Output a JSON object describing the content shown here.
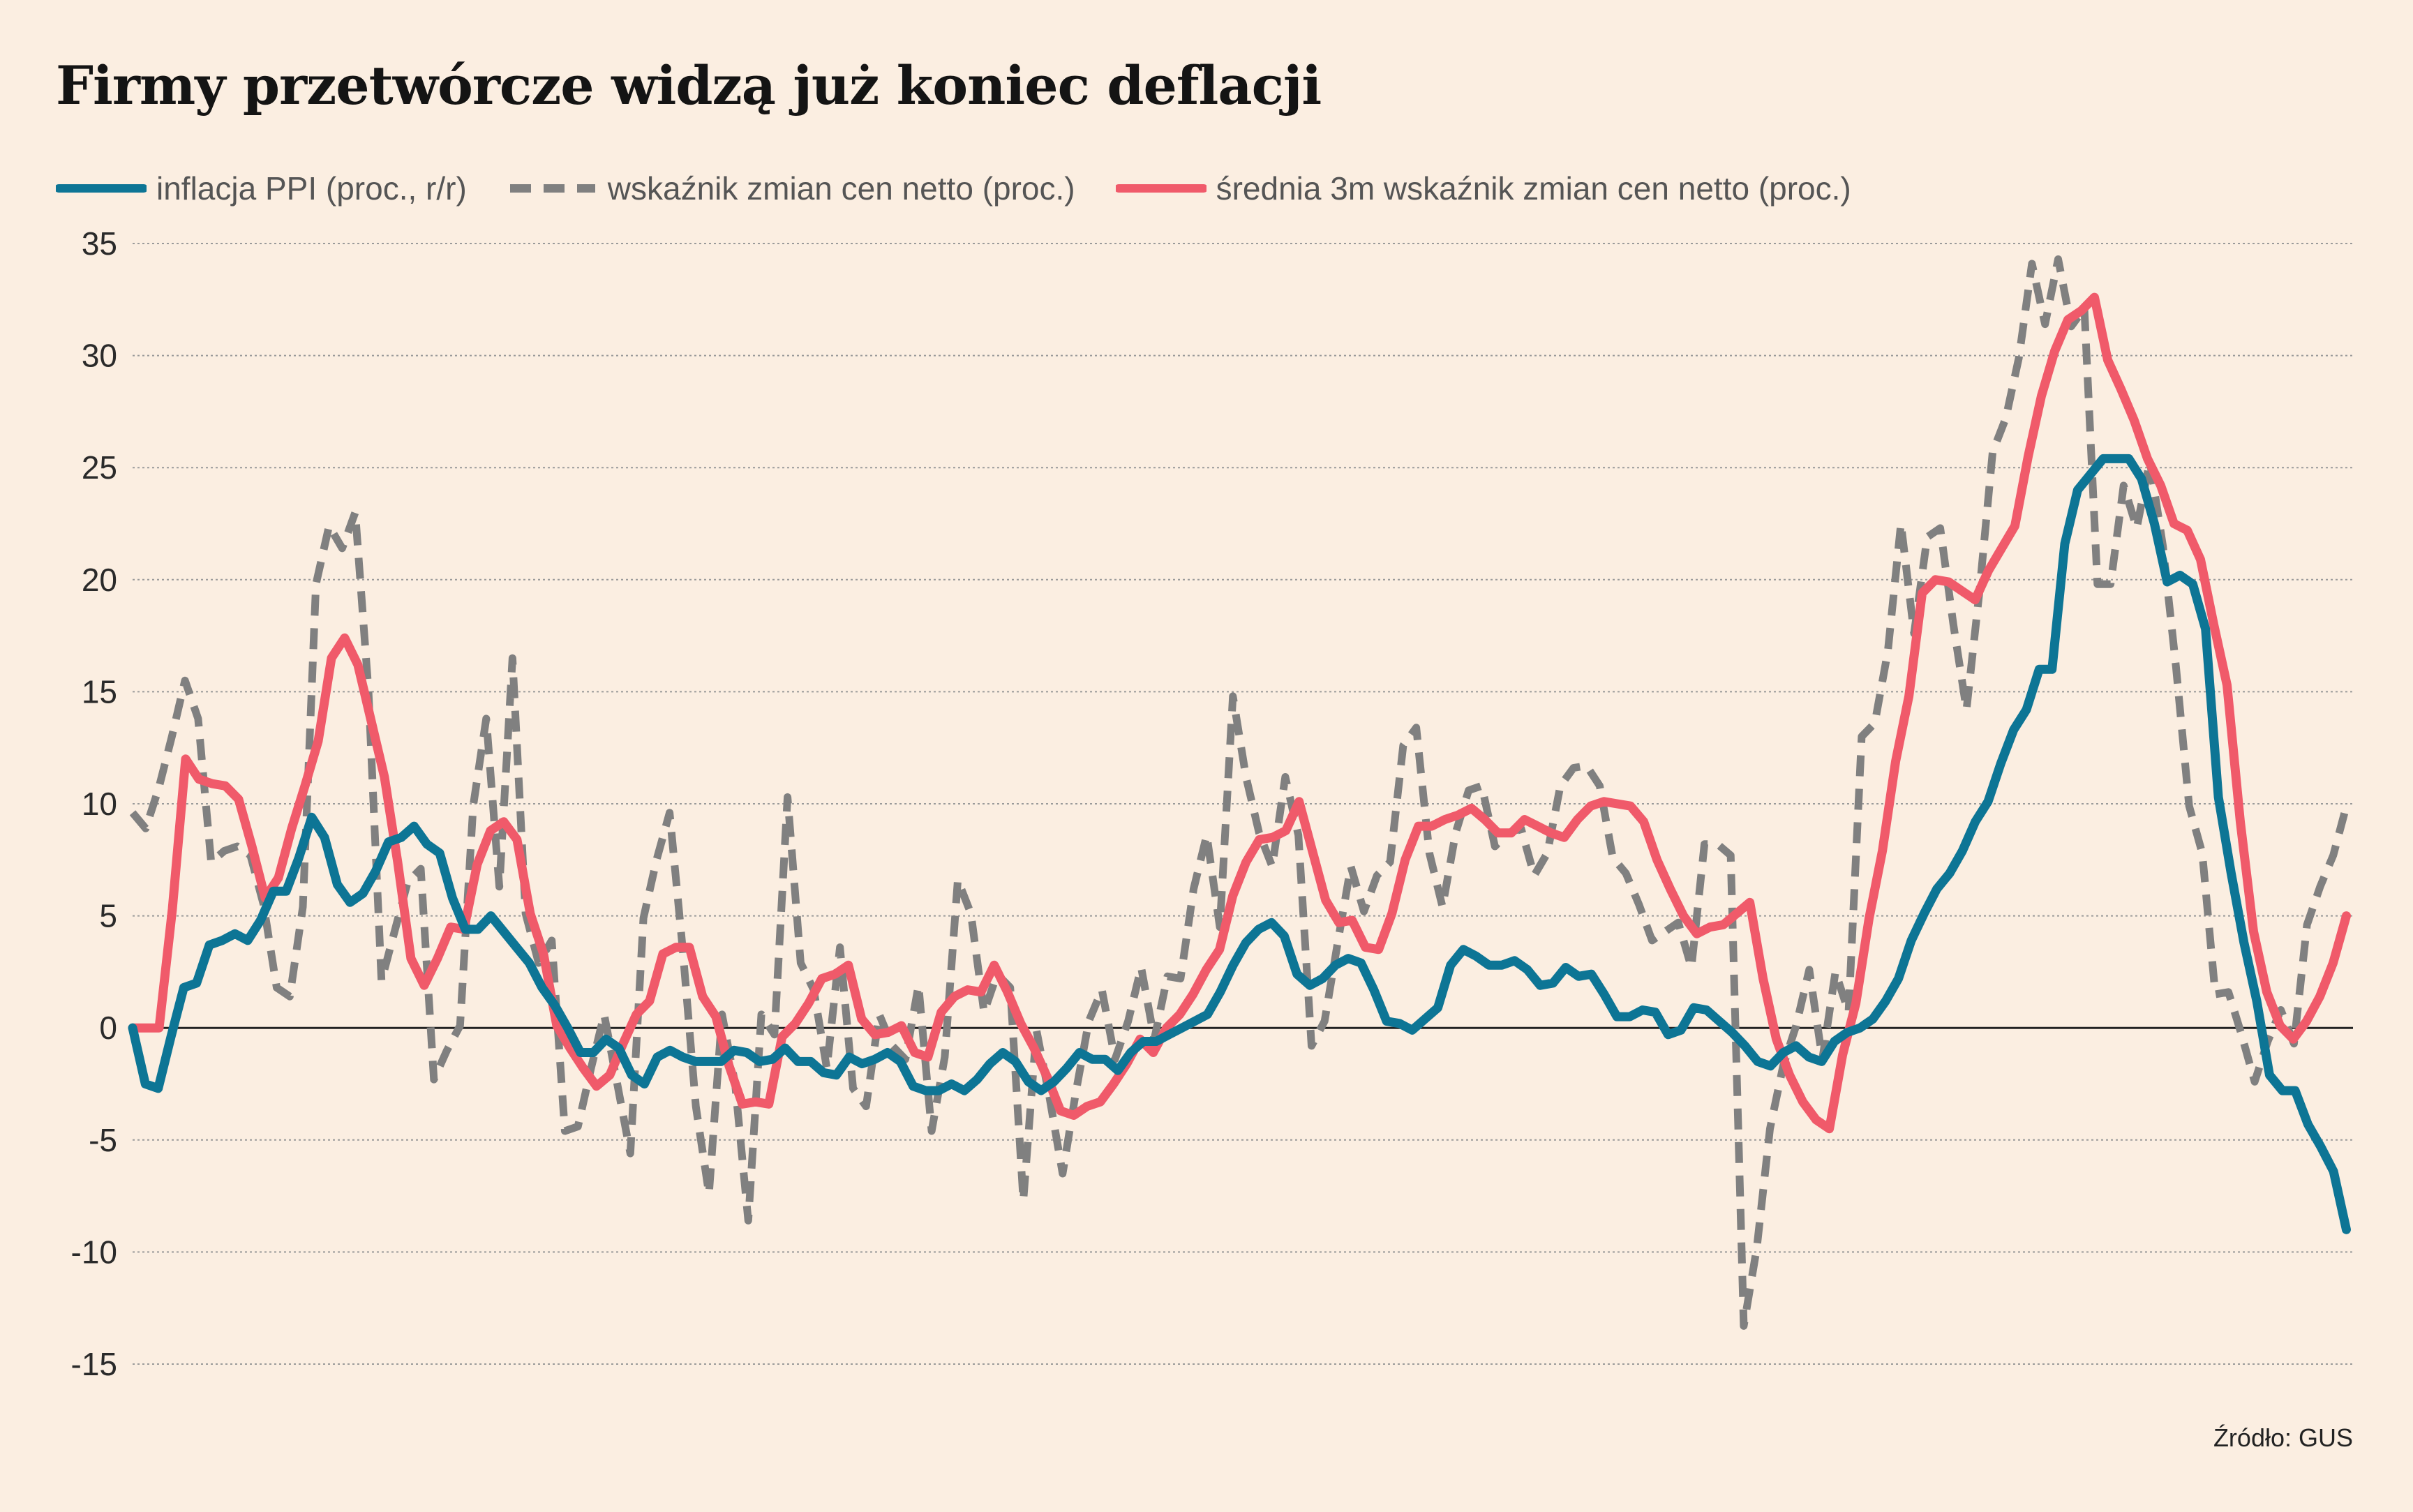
{
  "title": "Firmy przetwórcze widzą już koniec deflacji",
  "source": "Źródło: GUS",
  "colors": {
    "background": "#fbeee1",
    "ppi": "#0d7595",
    "net": "#808080",
    "avg": "#f05a6a",
    "grid": "#9a9a9a",
    "zero": "#222222"
  },
  "chart_data": {
    "type": "line",
    "title": "Firmy przetwórcze widzą już koniec deflacji",
    "ylim": [
      -15,
      35
    ],
    "yticks": [
      35,
      30,
      25,
      20,
      15,
      10,
      5,
      0,
      -5,
      -10,
      -15
    ],
    "grid": true,
    "legend_position": "top",
    "series": [
      {
        "name": "inflacja PPI (proc., r/r)",
        "style": "solid",
        "color": "#0d7595",
        "values": [
          0,
          -2.5,
          -2.7,
          -0.4,
          1.8,
          2,
          3.7,
          3.9,
          4.2,
          3.9,
          4.8,
          6.1,
          6.1,
          7.6,
          9.4,
          8.5,
          6.4,
          5.6,
          6,
          7,
          8.3,
          8.5,
          9,
          8.2,
          7.8,
          5.8,
          4.4,
          4.4,
          5,
          4.3,
          3.6,
          2.9,
          1.8,
          1,
          0,
          -1.1,
          -1.1,
          -0.5,
          -0.9,
          -2.1,
          -2.5,
          -1.3,
          -1,
          -1.3,
          -1.5,
          -1.5,
          -1.5,
          -1,
          -1.1,
          -1.5,
          -1.4,
          -0.9,
          -1.5,
          -1.5,
          -2,
          -2.1,
          -1.3,
          -1.6,
          -1.4,
          -1.1,
          -1.5,
          -2.6,
          -2.8,
          -2.8,
          -2.5,
          -2.8,
          -2.3,
          -1.6,
          -1.1,
          -1.5,
          -2.4,
          -2.8,
          -2.4,
          -1.8,
          -1.1,
          -1.4,
          -1.4,
          -1.9,
          -1.1,
          -0.6,
          -0.6,
          -0.3,
          0,
          0.3,
          0.6,
          1.6,
          2.8,
          3.8,
          4.4,
          4.7,
          4.1,
          2.4,
          1.9,
          2.2,
          2.8,
          3.1,
          2.9,
          1.7,
          0.3,
          0.2,
          -0.1,
          0.4,
          0.9,
          2.8,
          3.5,
          3.2,
          2.8,
          2.8,
          3,
          2.6,
          1.9,
          2,
          2.7,
          2.3,
          2.4,
          1.5,
          0.5,
          0.5,
          0.8,
          0.7,
          -0.3,
          -0.1,
          0.9,
          0.8,
          0.3,
          -0.2,
          -0.8,
          -1.5,
          -1.7,
          -1.1,
          -0.8,
          -1.3,
          -1.5,
          -0.6,
          -0.2,
          0,
          0.4,
          1.2,
          2.2,
          3.9,
          5.1,
          6.2,
          6.9,
          7.9,
          9.2,
          10.1,
          11.8,
          13.3,
          14.2,
          16,
          16,
          21.6,
          24,
          24.7,
          25.4,
          25.4,
          25.4,
          24.5,
          22.5,
          19.9,
          20.2,
          19.8,
          17.8,
          10.3,
          6.9,
          3.8,
          1.2,
          -2.1,
          -2.8,
          -2.8,
          -4.3,
          -5.3,
          -6.4,
          -9
        ],
        "x_range": [
          0,
          184
        ]
      },
      {
        "name": "wskaźnik zmian cen netto (proc.)",
        "style": "dashed",
        "color": "#808080",
        "values": [
          9.6,
          8.9,
          10.7,
          13,
          15.5,
          13.8,
          7.4,
          7.9,
          8.1,
          7.7,
          5.5,
          1.8,
          1.4,
          5.4,
          19.8,
          22.4,
          21.4,
          23,
          15.1,
          2.1,
          4.3,
          6.5,
          7.1,
          -2.3,
          -1,
          0.1,
          9.9,
          13.8,
          6.3,
          16.5,
          5.1,
          2.9,
          3.9,
          -4.6,
          -4.4,
          -1.8,
          0.6,
          -2.5,
          -5.6,
          4.9,
          7.5,
          9.6,
          3.5,
          -3.5,
          -7.4,
          0.6,
          -2.5,
          -8.6,
          0.6,
          -0.3,
          10.3,
          2.9,
          1.7,
          -1.8,
          3.6,
          -2.7,
          -3.5,
          0.6,
          -0.8,
          -1.4,
          1.9,
          -4.6,
          -1.3,
          6.6,
          5.1,
          0.7,
          2.4,
          1.8,
          -7.7,
          -0.1,
          -3.1,
          -6.5,
          -2.9,
          0.3,
          1.7,
          -1.4,
          0.3,
          2.7,
          -0.5,
          2.3,
          2.2,
          6.2,
          8.6,
          4.5,
          14.8,
          11.2,
          8.7,
          7.2,
          11.2,
          8.6,
          -0.8,
          0.3,
          3.8,
          7.2,
          5.2,
          6.8,
          7.4,
          12.6,
          13.4,
          7.8,
          5.4,
          8.7,
          10.6,
          10.8,
          8.1,
          8.7,
          8.9,
          6.8,
          7.8,
          10.8,
          11.6,
          11.7,
          10.8,
          7.6,
          6.9,
          5.5,
          3.9,
          4.3,
          4.7,
          2.7,
          8.2,
          8.2,
          7.7,
          -13.3,
          -9.8,
          -4.5,
          -1.7,
          0.1,
          2.6,
          -1.4,
          2.5,
          0.7,
          13,
          13.6,
          16.8,
          22.5,
          17.6,
          21.9,
          22.3,
          18,
          14.2,
          19.5,
          25.7,
          27.2,
          29.9,
          34.1,
          31.4,
          34.3,
          31.3,
          32.1,
          19.8,
          19.8,
          24.2,
          22.3,
          25.3,
          21.5,
          16.1,
          9.9,
          7.8,
          1.5,
          1.6,
          -0.3,
          -2.4,
          -0.6,
          0.8,
          -0.7,
          4.6,
          6.3,
          7.7,
          9.9
        ],
        "x_range": [
          0,
          184
        ]
      },
      {
        "name": "średnia 3m wskaźnik zmian cen netto (proc.)",
        "style": "solid",
        "color": "#f05a6a",
        "values": [
          0,
          0,
          0,
          5.3,
          12,
          11.1,
          10.9,
          10.8,
          10.2,
          8.1,
          5.8,
          6.7,
          8.9,
          10.8,
          12.8,
          16.5,
          17.4,
          16.2,
          13.7,
          11.2,
          7.4,
          3.1,
          1.9,
          3.1,
          4.5,
          4.4,
          7.3,
          8.8,
          9.2,
          8.4,
          5.1,
          3.3,
          0.1,
          -0.9,
          -1.8,
          -2.6,
          -2.1,
          -0.7,
          0.6,
          1.2,
          3.3,
          3.6,
          3.6,
          1.4,
          0.5,
          -1.7,
          -3.4,
          -3.3,
          -3.4,
          -0.4,
          0.2,
          1.1,
          2.2,
          2.4,
          2.8,
          0.4,
          -0.3,
          -0.2,
          0.1,
          -1.1,
          -1.3,
          0.7,
          1.4,
          1.7,
          1.6,
          2.8,
          1.6,
          0.2,
          -0.9,
          -2.2,
          -3.7,
          -3.9,
          -3.5,
          -3.3,
          -2.5,
          -1.6,
          -0.5,
          -1.1,
          0,
          0.6,
          1.5,
          2.6,
          3.5,
          5.9,
          7.4,
          8.4,
          8.5,
          8.8,
          10.1,
          7.9,
          5.7,
          4.7,
          4.8,
          3.6,
          3.5,
          5.1,
          7.5,
          9,
          9,
          9.3,
          9.5,
          9.8,
          9.3,
          8.7,
          8.7,
          9.3,
          9,
          8.7,
          8.5,
          9.3,
          9.9,
          10.1,
          10,
          9.9,
          9.2,
          7.5,
          6.2,
          5,
          4.2,
          4.5,
          4.6,
          5.1,
          5.6,
          2.2,
          -0.5,
          -2.1,
          -3.3,
          -4.1,
          -4.5,
          -1.2,
          1.1,
          4.9,
          7.9,
          11.9,
          14.8,
          19.4,
          20,
          19.9,
          19.5,
          19.1,
          20.4,
          21.4,
          22.4,
          25.5,
          28.2,
          30.2,
          31.6,
          32,
          32.6,
          29.8,
          28.5,
          27.1,
          25.4,
          24.2,
          22.5,
          22.2,
          20.9,
          18,
          15.3,
          9.2,
          4.3,
          1.6,
          0.1,
          -0.5,
          0.3,
          1.4,
          2.9,
          5
        ],
        "x_range": [
          0,
          184
        ]
      }
    ]
  }
}
